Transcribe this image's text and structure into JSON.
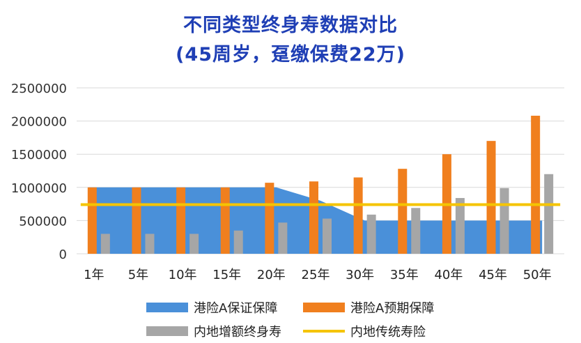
{
  "chart_data": {
    "type": "bar",
    "title": "不同类型终身寿数据对比",
    "subtitle": "(45周岁，趸缴保费22万)",
    "categories": [
      "1年",
      "5年",
      "10年",
      "15年",
      "20年",
      "25年",
      "30年",
      "35年",
      "40年",
      "45年",
      "50年"
    ],
    "ylim": [
      0,
      2500000
    ],
    "yticks": [
      "0",
      "500000",
      "1000000",
      "1500000",
      "2000000",
      "2500000"
    ],
    "grid": true,
    "legend_position": "bottom",
    "series": [
      {
        "name": "港险A保证保障",
        "type": "area",
        "color": "#4a90d9",
        "values": [
          1000000,
          1000000,
          1000000,
          1000000,
          1000000,
          800000,
          500000,
          500000,
          500000,
          500000,
          500000
        ]
      },
      {
        "name": "港险A预期保障",
        "type": "bar",
        "color": "#f07f1e",
        "values": [
          1000000,
          1000000,
          1000000,
          1000000,
          1070000,
          1090000,
          1150000,
          1280000,
          1500000,
          1700000,
          2080000
        ]
      },
      {
        "name": "内地增额终身寿",
        "type": "bar",
        "color": "#a6a6a6",
        "values": [
          300000,
          300000,
          300000,
          350000,
          470000,
          530000,
          590000,
          690000,
          840000,
          990000,
          1200000
        ]
      },
      {
        "name": "内地传统寿险",
        "type": "line",
        "color": "#f5c400",
        "values": [
          740000,
          740000,
          740000,
          740000,
          740000,
          740000,
          740000,
          740000,
          740000,
          740000,
          740000
        ]
      }
    ]
  }
}
